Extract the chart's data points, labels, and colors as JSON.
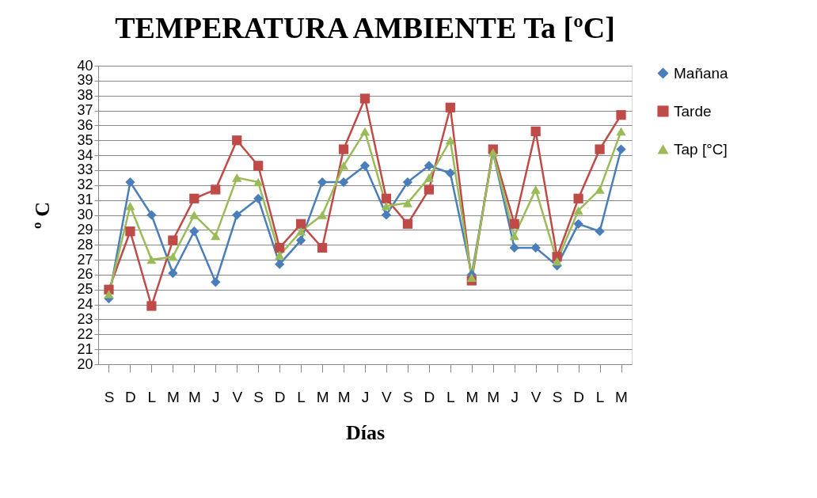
{
  "chart_data": {
    "type": "line",
    "title": "TEMPERATURA AMBIENTE Ta [ºC]",
    "xlabel": "Días",
    "ylabel": "º C",
    "categories": [
      "S",
      "D",
      "L",
      "M",
      "M",
      "J",
      "V",
      "S",
      "D",
      "L",
      "M",
      "M",
      "J",
      "V",
      "S",
      "D",
      "L",
      "M",
      "M",
      "J",
      "V",
      "S",
      "D",
      "L",
      "M"
    ],
    "ylim": [
      20,
      40
    ],
    "yticks": [
      20,
      21,
      22,
      23,
      24,
      25,
      26,
      27,
      28,
      29,
      30,
      31,
      32,
      33,
      34,
      35,
      36,
      37,
      38,
      39,
      40
    ],
    "grid": "y",
    "legend": "right",
    "series": [
      {
        "name": "Mañana",
        "color": "#4a7ebb",
        "marker": "diamond",
        "values": [
          24.4,
          32.2,
          30.0,
          26.1,
          28.9,
          25.5,
          30.0,
          31.1,
          26.7,
          28.3,
          32.2,
          32.2,
          33.3,
          30.0,
          32.2,
          33.3,
          32.8,
          26.0,
          34.2,
          27.8,
          27.8,
          26.6,
          29.4,
          28.9,
          34.4
        ]
      },
      {
        "name": "Tarde",
        "color": "#be4b48",
        "marker": "square",
        "values": [
          25.0,
          28.9,
          23.9,
          28.3,
          31.1,
          31.7,
          35.0,
          33.3,
          27.8,
          29.4,
          27.8,
          34.4,
          37.8,
          31.1,
          29.4,
          31.7,
          37.2,
          25.6,
          34.4,
          29.4,
          35.6,
          27.2,
          31.1,
          34.4,
          36.7
        ]
      },
      {
        "name": "Tap [°C]",
        "color": "#9bbb59",
        "marker": "triangle",
        "values": [
          24.7,
          30.6,
          27.0,
          27.2,
          30.0,
          28.6,
          32.5,
          32.2,
          27.3,
          28.9,
          30.0,
          33.3,
          35.6,
          30.6,
          30.8,
          32.5,
          35.0,
          25.8,
          34.2,
          28.6,
          31.7,
          26.9,
          30.3,
          31.7,
          35.6
        ]
      }
    ]
  }
}
